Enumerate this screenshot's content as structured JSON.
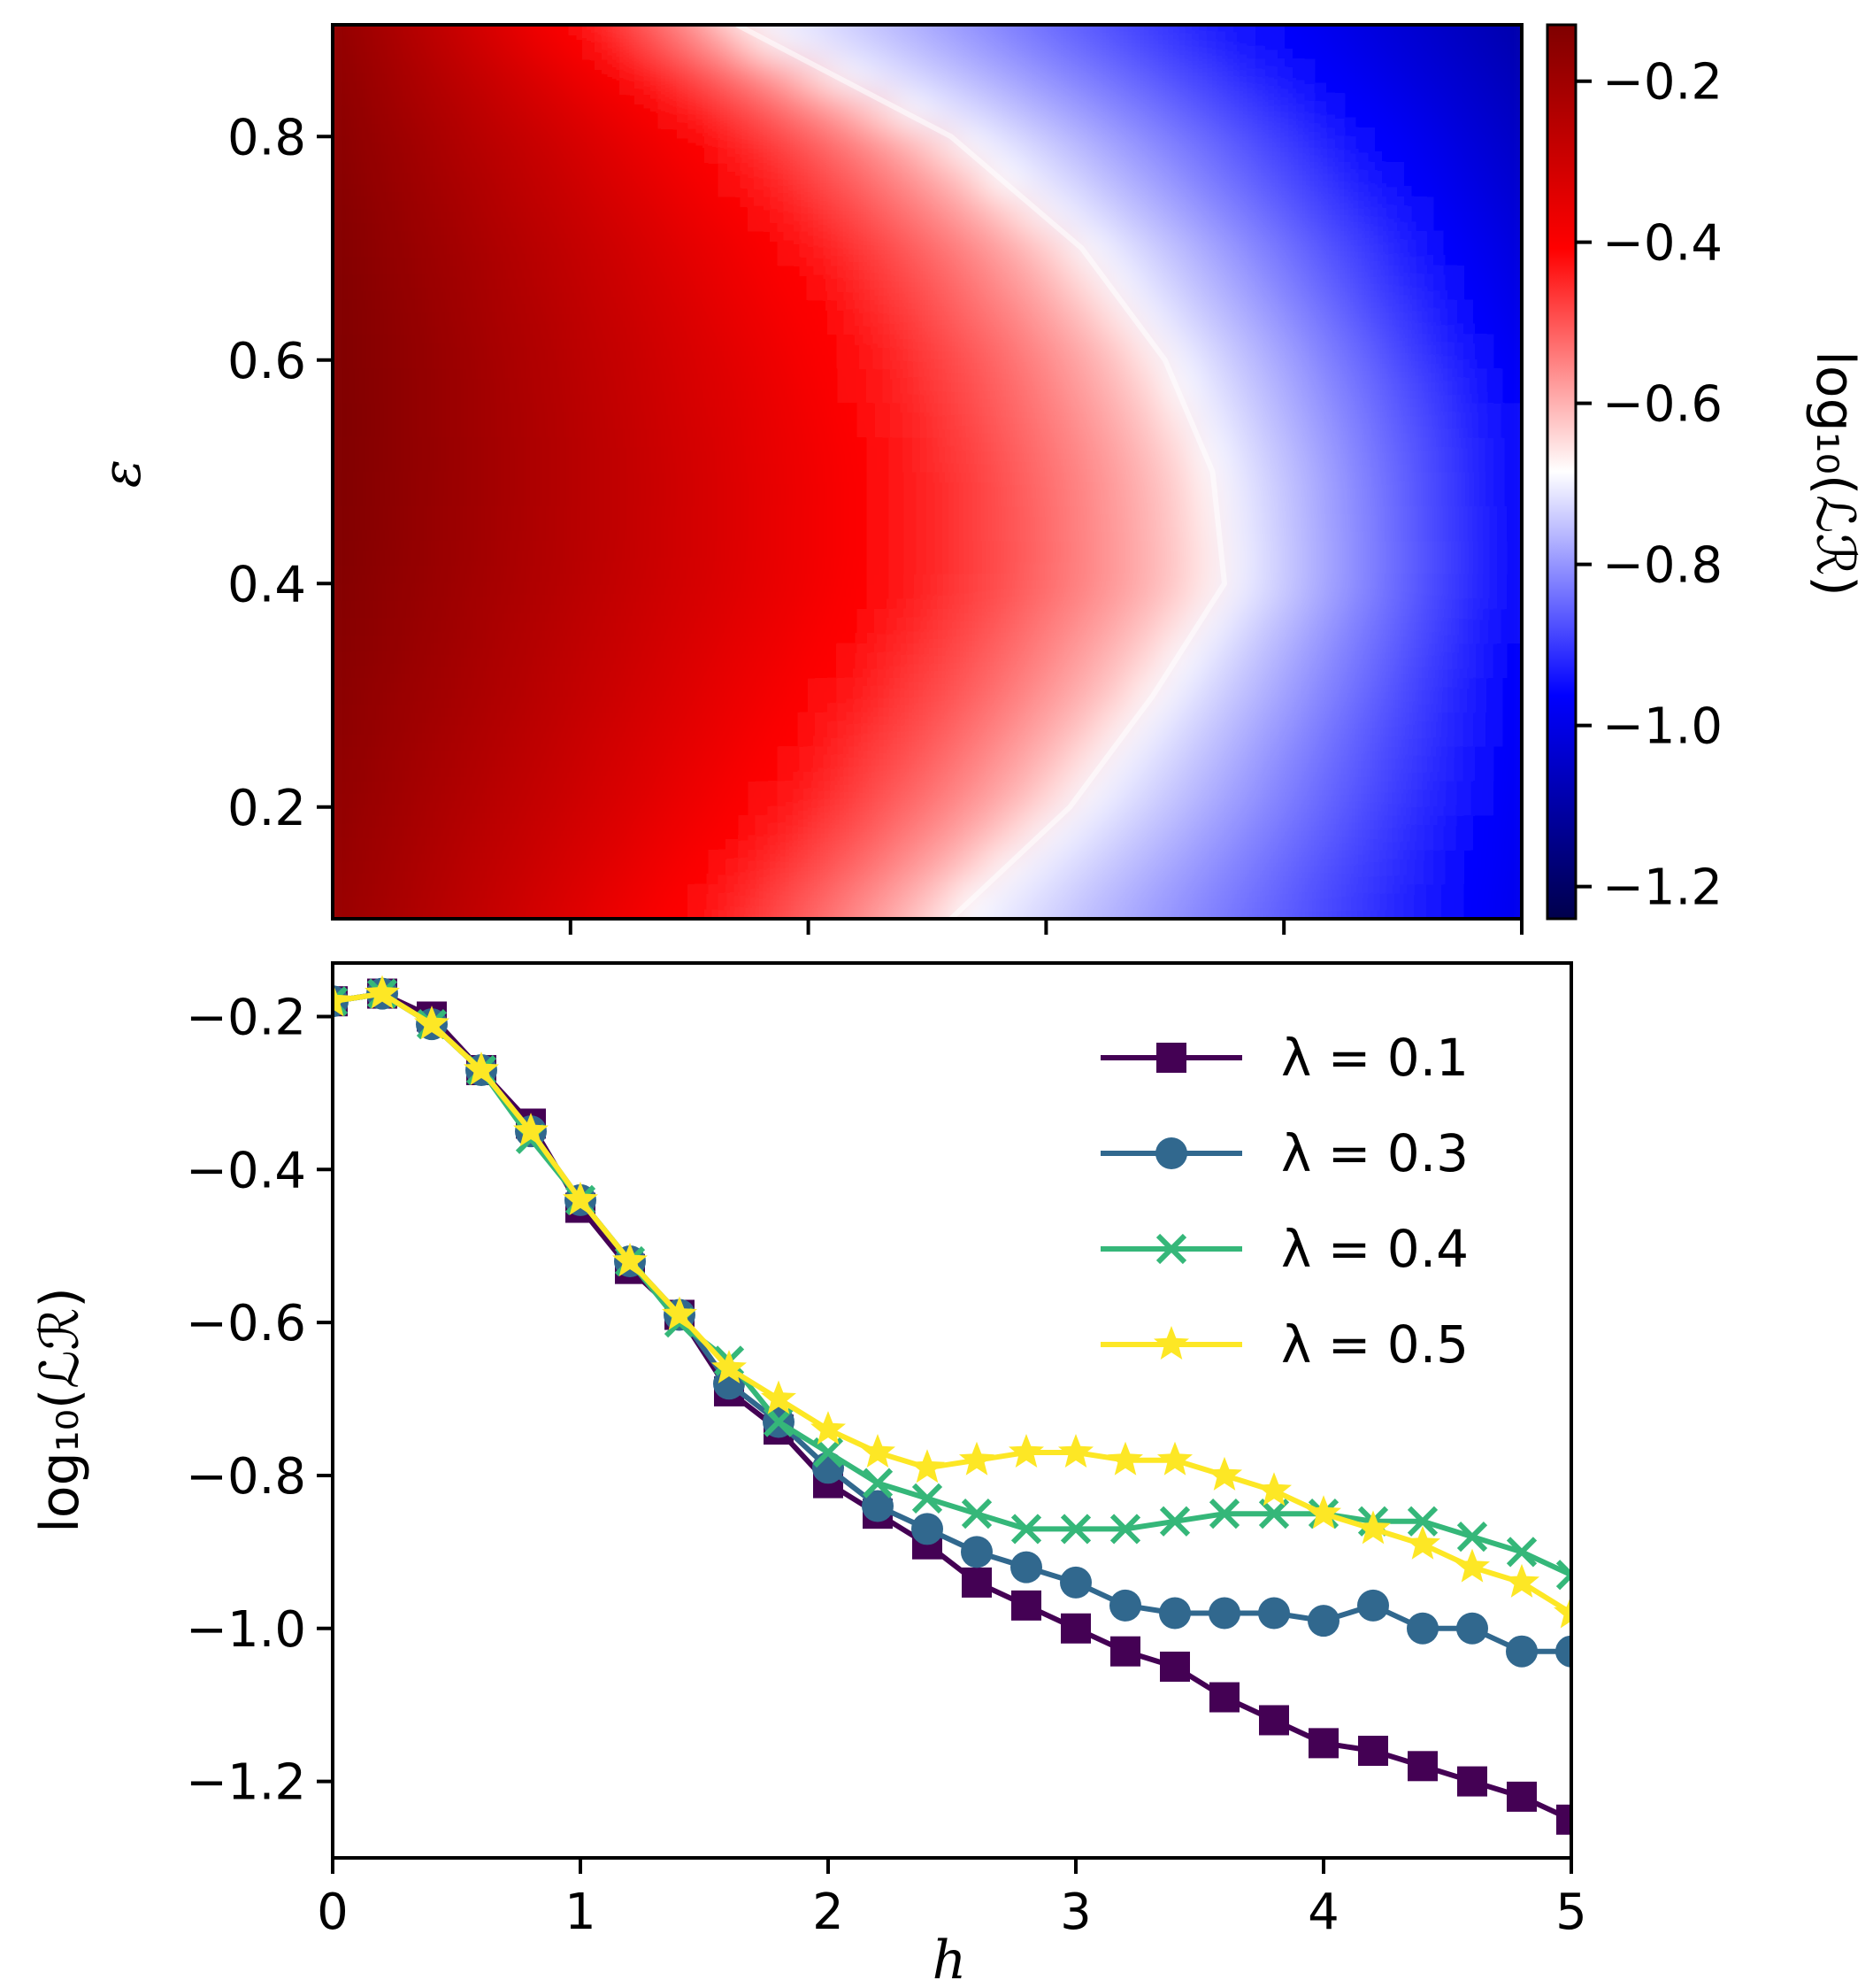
{
  "chart_data": [
    {
      "type": "heatmap",
      "title": "",
      "xlabel": "",
      "ylabel": "ε",
      "xlim": [
        0,
        5
      ],
      "ylim": [
        0.1,
        0.9
      ],
      "yticks": [
        0.2,
        0.4,
        0.6,
        0.8
      ],
      "ytick_labels": [
        "0.2",
        "0.4",
        "0.6",
        "0.8"
      ],
      "xticks": [
        1,
        2,
        3,
        4,
        5
      ],
      "colormap": "seismic",
      "colorbar": {
        "label": "log₁₀(ℒℛ)",
        "range": [
          -1.24,
          -0.13
        ],
        "ticks": [
          -1.2,
          -1.0,
          -0.8,
          -0.6,
          -0.4,
          -0.2
        ],
        "tick_labels": [
          "−1.2",
          "−1.0",
          "−0.8",
          "−0.6",
          "−0.4",
          "−0.2"
        ]
      },
      "boundary_h_at_white": [
        {
          "eps": 0.1,
          "h": 2.6
        },
        {
          "eps": 0.2,
          "h": 3.1
        },
        {
          "eps": 0.3,
          "h": 3.45
        },
        {
          "eps": 0.4,
          "h": 3.75
        },
        {
          "eps": 0.5,
          "h": 3.7
        },
        {
          "eps": 0.6,
          "h": 3.5
        },
        {
          "eps": 0.7,
          "h": 3.15
        },
        {
          "eps": 0.8,
          "h": 2.6
        },
        {
          "eps": 0.9,
          "h": 1.7
        }
      ]
    },
    {
      "type": "line",
      "title": "",
      "xlabel": "h",
      "ylabel": "log₁₀(ℒℛ)",
      "xlim": [
        0,
        5
      ],
      "ylim": [
        -1.3,
        -0.13
      ],
      "xticks": [
        0,
        1,
        2,
        3,
        4,
        5
      ],
      "xtick_labels": [
        "0",
        "1",
        "2",
        "3",
        "4",
        "5"
      ],
      "yticks": [
        -1.2,
        -1.0,
        -0.8,
        -0.6,
        -0.4,
        -0.2
      ],
      "ytick_labels": [
        "−1.2",
        "−1.0",
        "−0.8",
        "−0.6",
        "−0.4",
        "−0.2"
      ],
      "legend_position": "top-right",
      "x": [
        0,
        0.2,
        0.4,
        0.6,
        0.8,
        1.0,
        1.2,
        1.4,
        1.6,
        1.8,
        2.0,
        2.2,
        2.4,
        2.6,
        2.8,
        3.0,
        3.2,
        3.4,
        3.6,
        3.8,
        4.0,
        4.2,
        4.4,
        4.6,
        4.8,
        5.0
      ],
      "series": [
        {
          "name": "λ = 0.1",
          "color": "#440154",
          "marker": "square",
          "values": [
            -0.18,
            -0.17,
            -0.2,
            -0.27,
            -0.34,
            -0.45,
            -0.53,
            -0.59,
            -0.69,
            -0.74,
            -0.81,
            -0.85,
            -0.89,
            -0.94,
            -0.97,
            -1.0,
            -1.03,
            -1.05,
            -1.09,
            -1.12,
            -1.15,
            -1.16,
            -1.18,
            -1.2,
            -1.22,
            -1.25
          ]
        },
        {
          "name": "λ = 0.3",
          "color": "#31688e",
          "marker": "circle",
          "values": [
            -0.18,
            -0.17,
            -0.21,
            -0.27,
            -0.35,
            -0.44,
            -0.52,
            -0.59,
            -0.68,
            -0.73,
            -0.79,
            -0.84,
            -0.87,
            -0.9,
            -0.92,
            -0.94,
            -0.97,
            -0.98,
            -0.98,
            -0.98,
            -0.99,
            -0.97,
            -1.0,
            -1.0,
            -1.03,
            -1.03
          ]
        },
        {
          "name": "λ = 0.4",
          "color": "#35b779",
          "marker": "x",
          "values": [
            -0.18,
            -0.17,
            -0.21,
            -0.27,
            -0.36,
            -0.44,
            -0.52,
            -0.6,
            -0.65,
            -0.73,
            -0.77,
            -0.81,
            -0.83,
            -0.85,
            -0.87,
            -0.87,
            -0.87,
            -0.86,
            -0.85,
            -0.85,
            -0.85,
            -0.86,
            -0.86,
            -0.88,
            -0.9,
            -0.93
          ]
        },
        {
          "name": "λ = 0.5",
          "color": "#fde725",
          "marker": "star",
          "values": [
            -0.18,
            -0.17,
            -0.21,
            -0.27,
            -0.35,
            -0.44,
            -0.52,
            -0.59,
            -0.66,
            -0.7,
            -0.74,
            -0.77,
            -0.79,
            -0.78,
            -0.77,
            -0.77,
            -0.78,
            -0.78,
            -0.8,
            -0.82,
            -0.85,
            -0.87,
            -0.89,
            -0.92,
            -0.94,
            -0.98
          ]
        }
      ]
    }
  ]
}
